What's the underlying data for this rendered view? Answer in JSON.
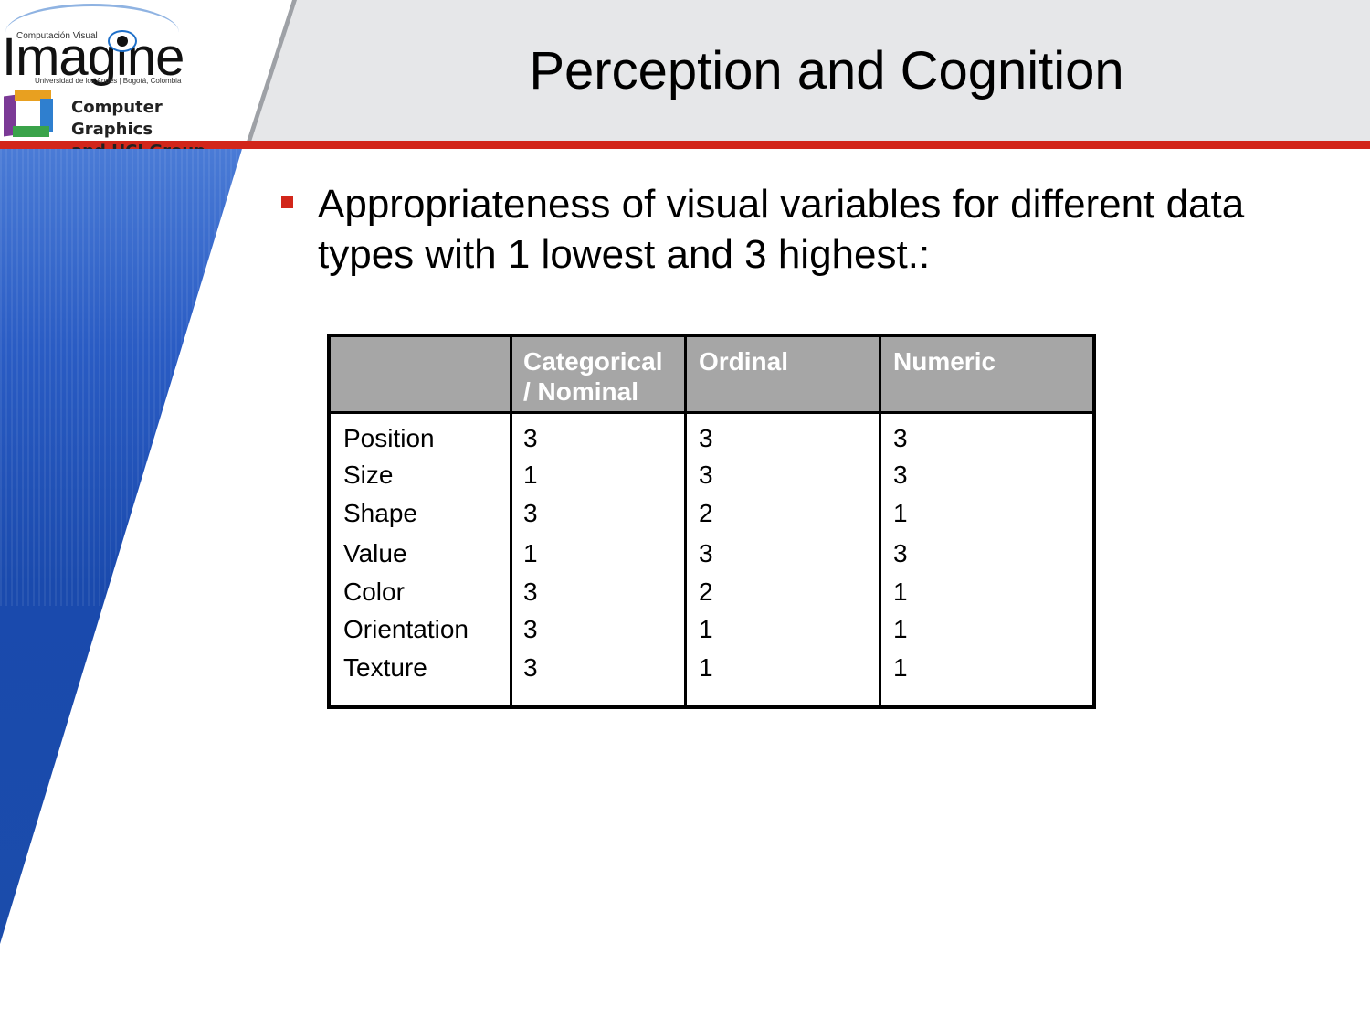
{
  "header": {
    "title": "Perception and Cognition"
  },
  "logo": {
    "small_text": "Computación Visual",
    "word": "Imagine",
    "university": "Universidad de los Andes | Bogotá, Colombia",
    "group_line1": "Computer Graphics",
    "group_line2": "and HCI Group"
  },
  "bullet": {
    "text": "Appropriateness of visual variables for different data types with 1 lowest and 3 highest.:"
  },
  "table": {
    "headers": [
      "",
      "Categorical\n/ Nominal",
      "Ordinal",
      "Numeric"
    ],
    "rows": [
      {
        "label": "Position",
        "values": [
          "3",
          "3",
          "3"
        ]
      },
      {
        "label": "Size",
        "values": [
          "1",
          "3",
          "3"
        ]
      },
      {
        "label": "Shape",
        "values": [
          "3",
          "2",
          "1"
        ]
      },
      {
        "label": "Value",
        "values": [
          "1",
          "3",
          "3"
        ]
      },
      {
        "label": "Color",
        "values": [
          "3",
          "2",
          "1"
        ]
      },
      {
        "label": "Orientation",
        "values": [
          "3",
          "1",
          "1"
        ]
      },
      {
        "label": "Texture",
        "values": [
          "3",
          "1",
          "1"
        ]
      }
    ]
  },
  "colors": {
    "accent_red": "#d2261a",
    "header_grey": "#e6e7e9",
    "table_header_grey": "#a6a6a6",
    "brand_blue": "#1b4cab"
  }
}
